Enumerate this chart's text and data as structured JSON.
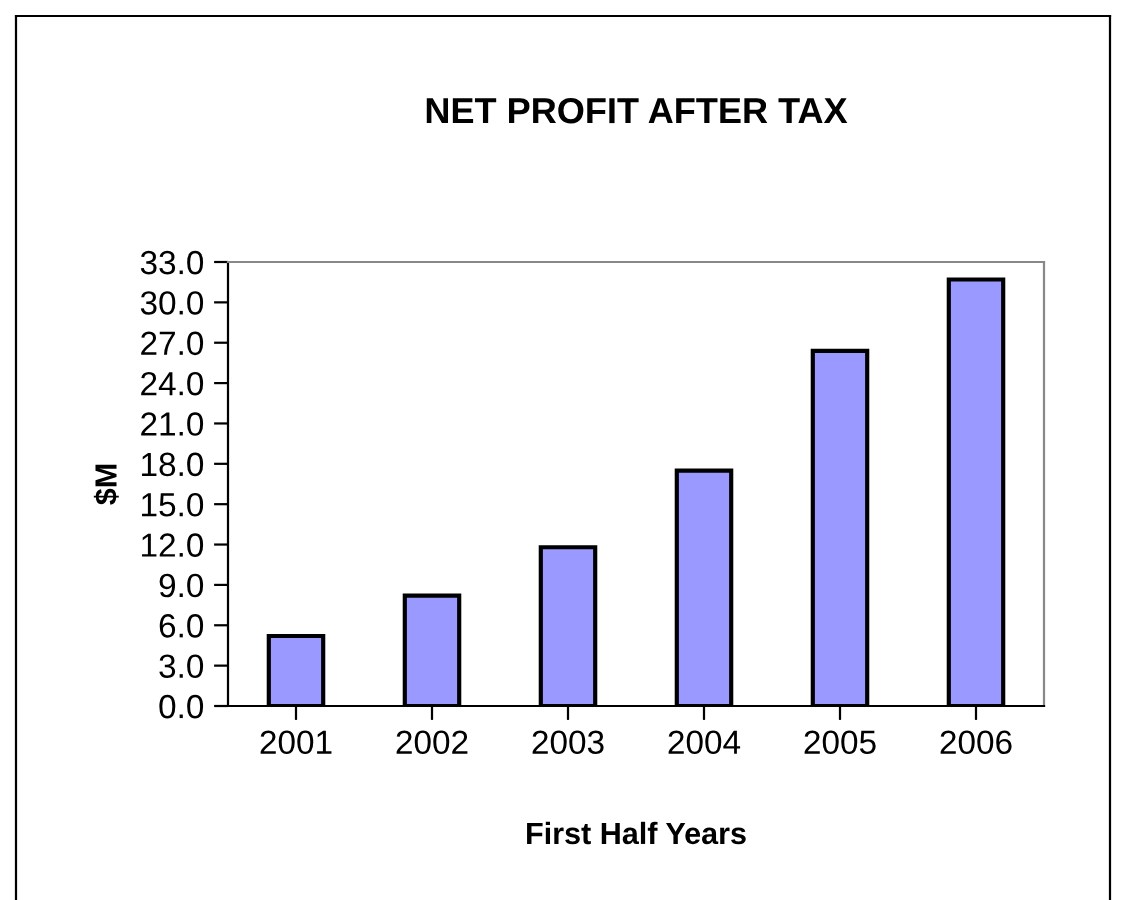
{
  "chart_data": {
    "type": "bar",
    "title": "NET PROFIT AFTER TAX",
    "xlabel": "First Half Years",
    "ylabel": "$M",
    "categories": [
      "2001",
      "2002",
      "2003",
      "2004",
      "2005",
      "2006"
    ],
    "values": [
      5.2,
      8.2,
      11.8,
      17.5,
      26.4,
      31.7
    ],
    "color": "#9999ff",
    "ylim": [
      0,
      33
    ],
    "yticks": [
      {
        "value": 0,
        "label": "0.0"
      },
      {
        "value": 3,
        "label": "3.0"
      },
      {
        "value": 6,
        "label": "6.0"
      },
      {
        "value": 9,
        "label": "9.0"
      },
      {
        "value": 12,
        "label": "12.0"
      },
      {
        "value": 15,
        "label": "15.0"
      },
      {
        "value": 18,
        "label": "18.0"
      },
      {
        "value": 21,
        "label": "21.0"
      },
      {
        "value": 24,
        "label": "24.0"
      },
      {
        "value": 27,
        "label": "27.0"
      },
      {
        "value": 30,
        "label": "30.0"
      },
      {
        "value": 33,
        "label": "33.0"
      }
    ],
    "grid": false,
    "legend": false
  }
}
